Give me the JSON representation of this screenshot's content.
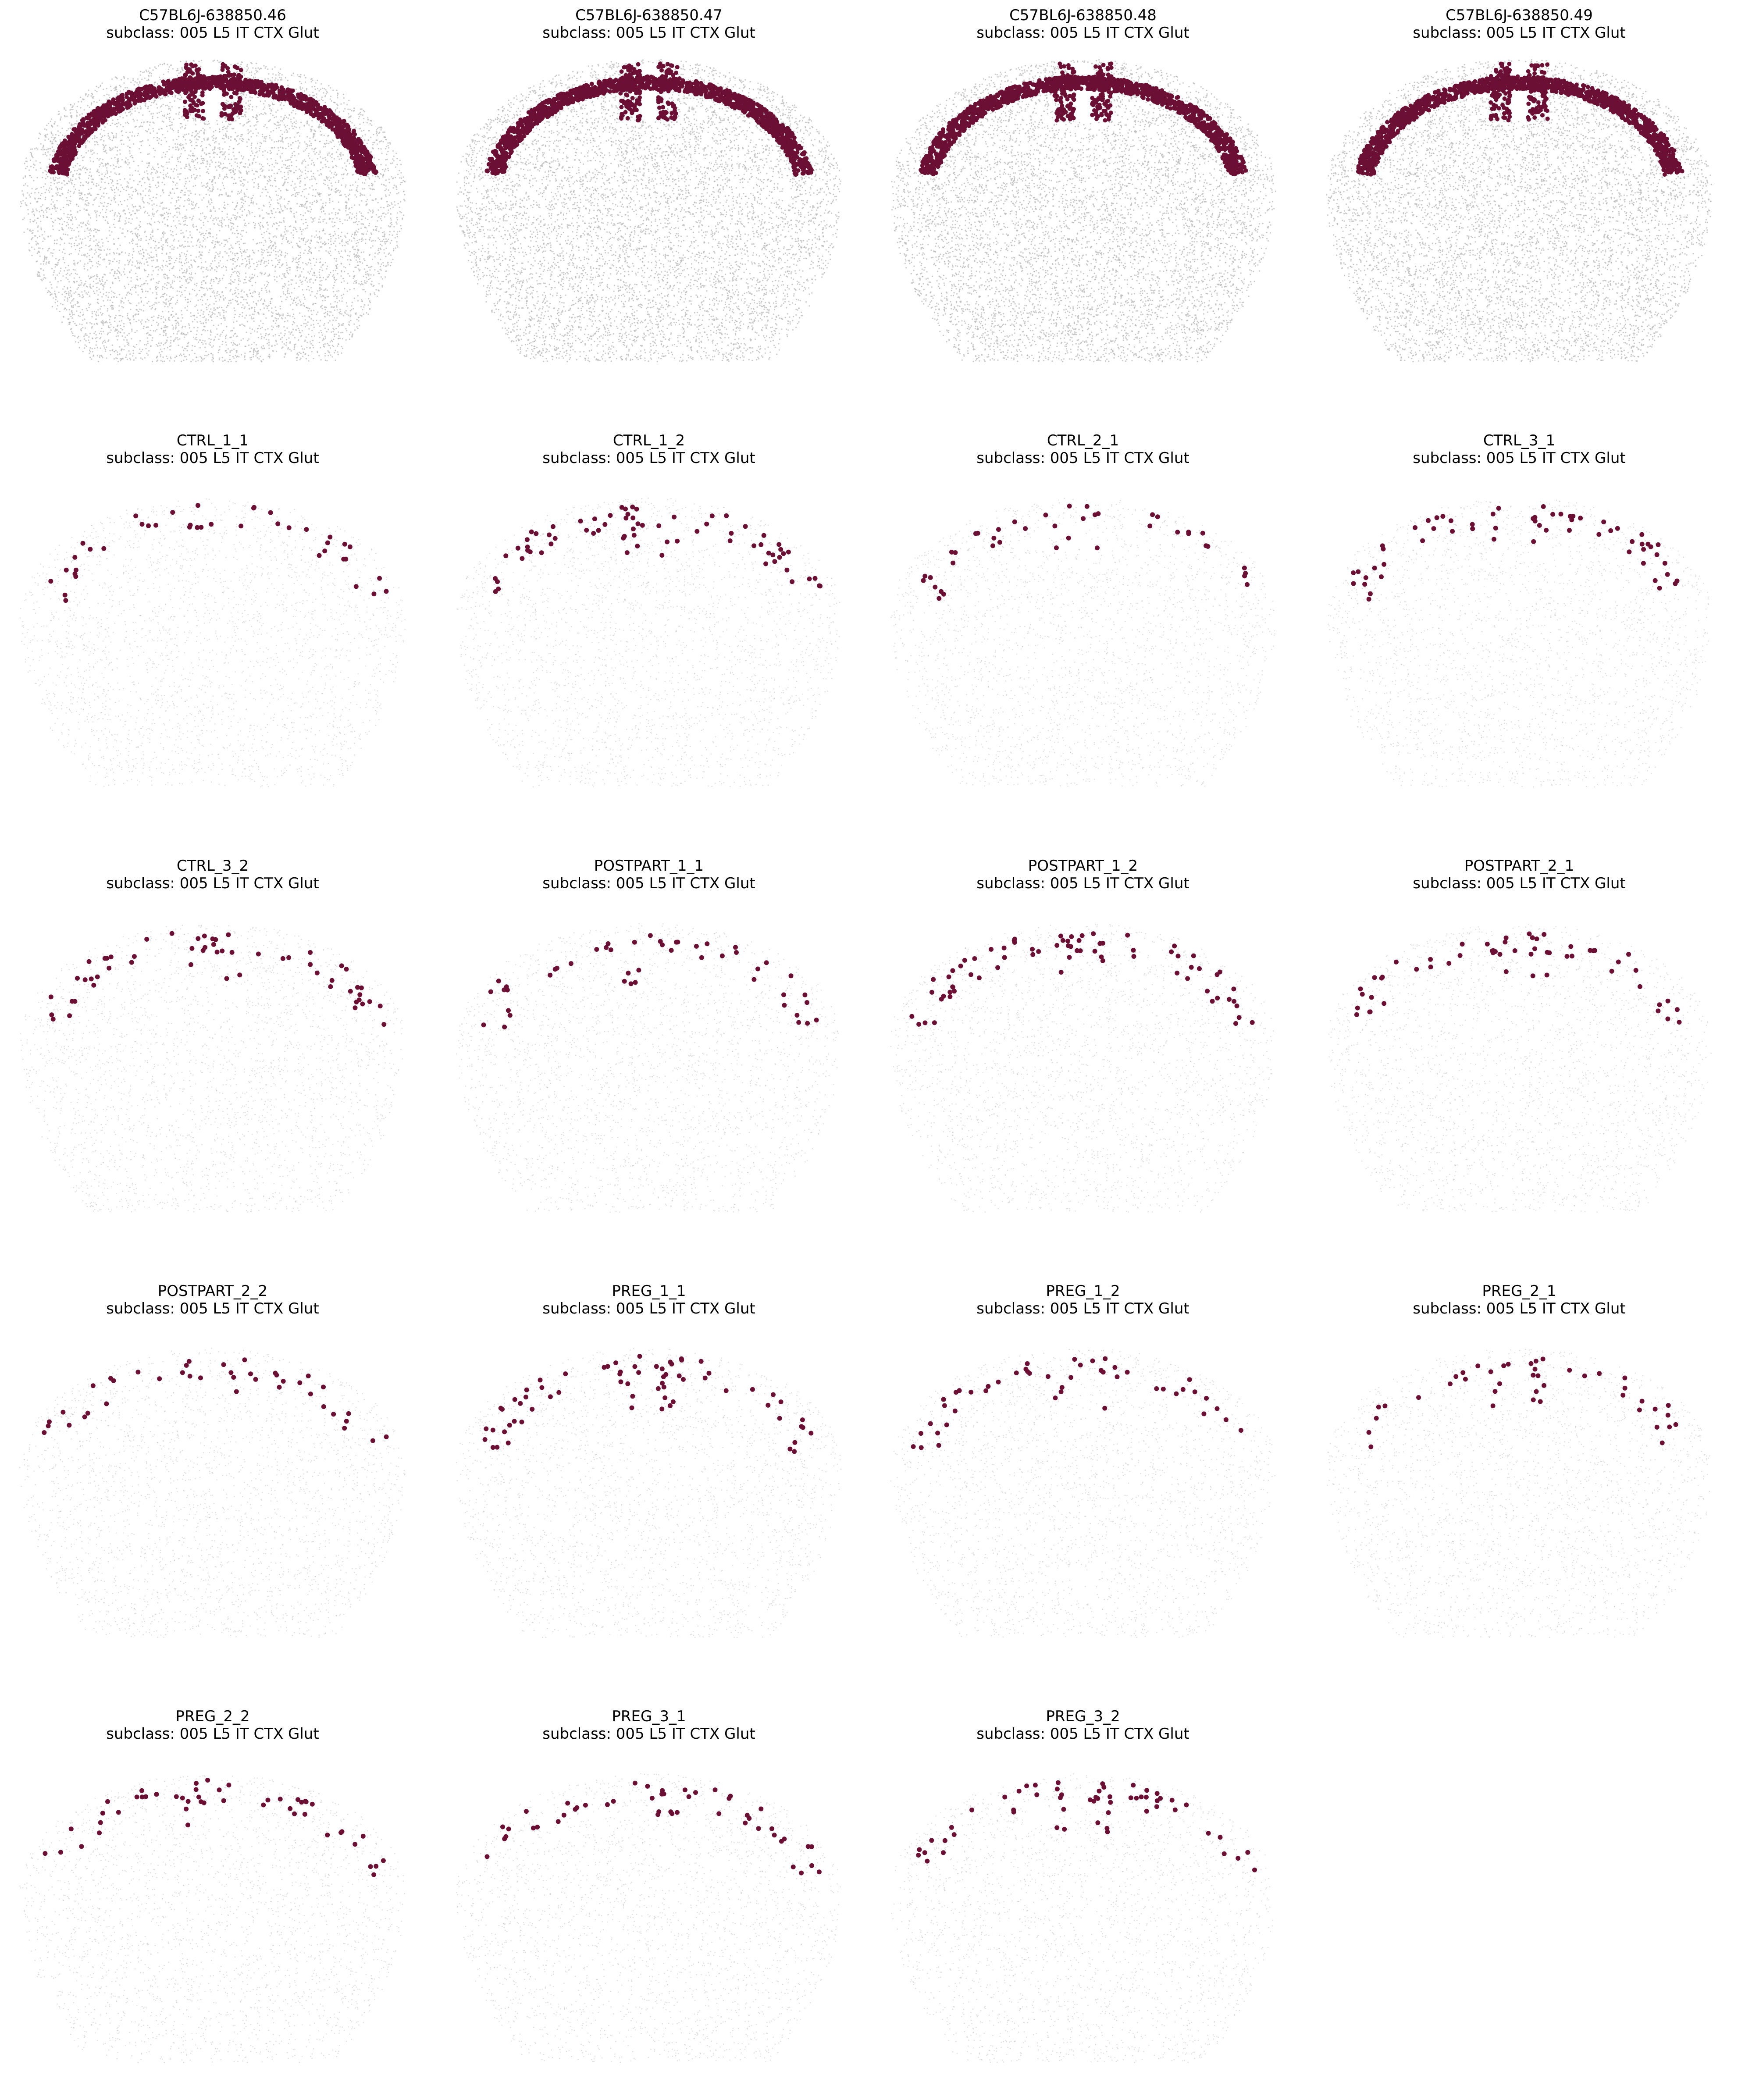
{
  "subclass_label": "subclass: 005 L5 IT CTX Glut",
  "highlight_color": "#6b0f35",
  "background_cell_color": "#b8b8b8",
  "panels": [
    {
      "sample": "C57BL6J-638850.46",
      "subclass": "subclass: 005 L5 IT CTX Glut",
      "style": "reference"
    },
    {
      "sample": "C57BL6J-638850.47",
      "subclass": "subclass: 005 L5 IT CTX Glut",
      "style": "reference"
    },
    {
      "sample": "C57BL6J-638850.48",
      "subclass": "subclass: 005 L5 IT CTX Glut",
      "style": "reference"
    },
    {
      "sample": "C57BL6J-638850.49",
      "subclass": "subclass: 005 L5 IT CTX Glut",
      "style": "reference"
    },
    {
      "sample": "CTRL_1_1",
      "subclass": "subclass: 005 L5 IT CTX Glut",
      "style": "sparse"
    },
    {
      "sample": "CTRL_1_2",
      "subclass": "subclass: 005 L5 IT CTX Glut",
      "style": "sparse"
    },
    {
      "sample": "CTRL_2_1",
      "subclass": "subclass: 005 L5 IT CTX Glut",
      "style": "sparse"
    },
    {
      "sample": "CTRL_3_1",
      "subclass": "subclass: 005 L5 IT CTX Glut",
      "style": "sparse"
    },
    {
      "sample": "CTRL_3_2",
      "subclass": "subclass: 005 L5 IT CTX Glut",
      "style": "sparse"
    },
    {
      "sample": "POSTPART_1_1",
      "subclass": "subclass: 005 L5 IT CTX Glut",
      "style": "sparse"
    },
    {
      "sample": "POSTPART_1_2",
      "subclass": "subclass: 005 L5 IT CTX Glut",
      "style": "sparse"
    },
    {
      "sample": "POSTPART_2_1",
      "subclass": "subclass: 005 L5 IT CTX Glut",
      "style": "sparse"
    },
    {
      "sample": "POSTPART_2_2",
      "subclass": "subclass: 005 L5 IT CTX Glut",
      "style": "sparse"
    },
    {
      "sample": "PREG_1_1",
      "subclass": "subclass: 005 L5 IT CTX Glut",
      "style": "sparse"
    },
    {
      "sample": "PREG_1_2",
      "subclass": "subclass: 005 L5 IT CTX Glut",
      "style": "sparse"
    },
    {
      "sample": "PREG_2_1",
      "subclass": "subclass: 005 L5 IT CTX Glut",
      "style": "sparse"
    },
    {
      "sample": "PREG_2_2",
      "subclass": "subclass: 005 L5 IT CTX Glut",
      "style": "sparse"
    },
    {
      "sample": "PREG_3_1",
      "subclass": "subclass: 005 L5 IT CTX Glut",
      "style": "sparse"
    },
    {
      "sample": "PREG_3_2",
      "subclass": "subclass: 005 L5 IT CTX Glut",
      "style": "sparse"
    }
  ]
}
